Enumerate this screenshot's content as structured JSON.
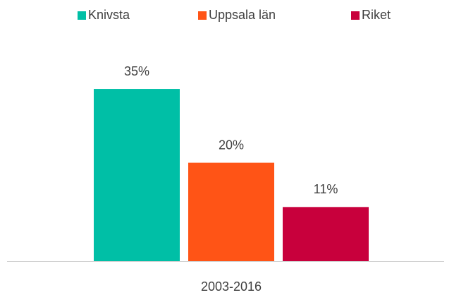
{
  "chart_data": {
    "type": "bar",
    "categories": [
      "2003-2016"
    ],
    "series": [
      {
        "name": "Knivsta",
        "color": "#00bfa6",
        "values": [
          35
        ],
        "value_labels": [
          "35%"
        ]
      },
      {
        "name": "Uppsala län",
        "color": "#ff5416",
        "values": [
          20
        ],
        "value_labels": [
          "20%"
        ]
      },
      {
        "name": "Riket",
        "color": "#c8003c",
        "values": [
          11
        ],
        "value_labels": [
          "11%"
        ]
      }
    ],
    "legend": "top"
  }
}
